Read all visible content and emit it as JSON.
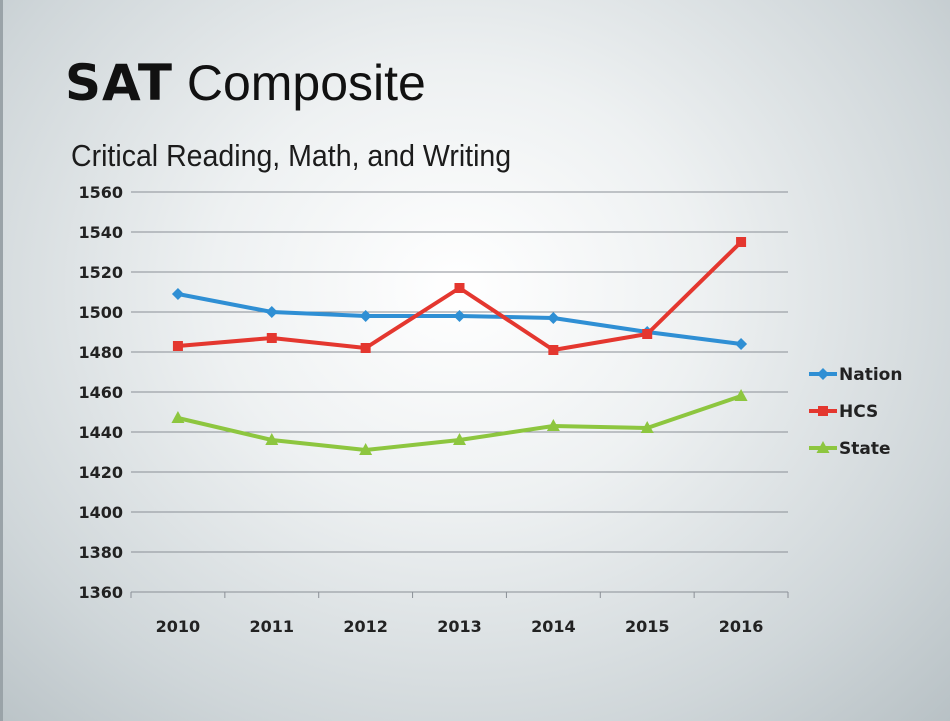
{
  "slide": {
    "title_bold": "SAT",
    "title_rest": " Composite",
    "subtitle": "Critical Reading, Math, and Writing"
  },
  "chart_data": {
    "type": "line",
    "title": "SAT Composite",
    "subtitle": "Critical Reading, Math, and Writing",
    "xlabel": "",
    "ylabel": "",
    "categories": [
      "2010",
      "2011",
      "2012",
      "2013",
      "2014",
      "2015",
      "2016"
    ],
    "ylim": [
      1360,
      1560
    ],
    "yticks": [
      1360,
      1380,
      1400,
      1420,
      1440,
      1460,
      1480,
      1500,
      1520,
      1540,
      1560
    ],
    "grid": true,
    "legend_position": "right",
    "series": [
      {
        "name": "Nation",
        "color": "#2f8fd4",
        "marker": "diamond",
        "values": [
          1509,
          1500,
          1498,
          1498,
          1497,
          1490,
          1484
        ]
      },
      {
        "name": "HCS",
        "color": "#e4372f",
        "marker": "square",
        "values": [
          1483,
          1487,
          1482,
          1512,
          1481,
          1489,
          1535
        ]
      },
      {
        "name": "State",
        "color": "#8dc63f",
        "marker": "triangle",
        "values": [
          1447,
          1436,
          1431,
          1436,
          1443,
          1442,
          1458
        ]
      }
    ]
  }
}
